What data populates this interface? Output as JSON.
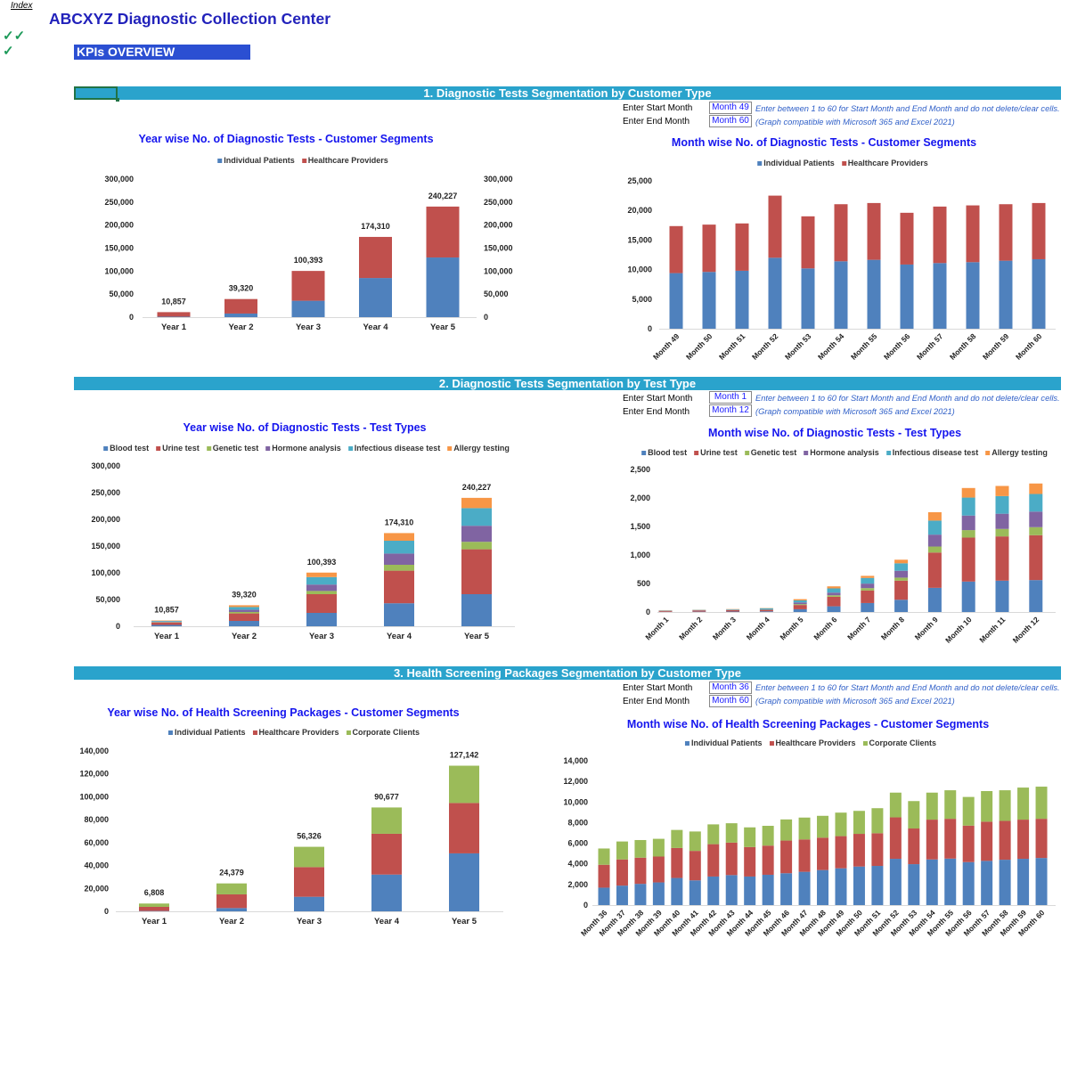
{
  "header": {
    "index_link": "Index",
    "title": "ABCXYZ Diagnostic Collection Center",
    "checkmarks": [
      "✓✓",
      "✓"
    ],
    "kpi_label": "KPIs OVERVIEW"
  },
  "colors": {
    "blue": "#4f81bd",
    "red": "#c0504d",
    "green": "#9bbb59",
    "purple": "#8064a2",
    "teal": "#4bacc6",
    "orange": "#f79646",
    "section": "#2aa3cc"
  },
  "sections": [
    {
      "title": "1. Diagnostic Tests Segmentation by Customer Type",
      "start_label": "Enter Start Month",
      "end_label": "Enter End Month",
      "start_value": "Month 49",
      "end_value": "Month 60",
      "note1": "Enter between 1 to 60 for Start Month and End Month and do not delete/clear cells.",
      "note2": "(Graph compatible with Microsoft 365 and Excel 2021)"
    },
    {
      "title": "2. Diagnostic Tests Segmentation by Test Type",
      "start_label": "Enter Start Month",
      "end_label": "Enter End Month",
      "start_value": "Month 1",
      "end_value": "Month 12",
      "note1": "Enter between 1 to 60 for Start Month and End Month and do not delete/clear cells.",
      "note2": "(Graph compatible with Microsoft 365 and Excel 2021)"
    },
    {
      "title": "3. Health Screening Packages Segmentation by Customer Type",
      "start_label": "Enter Start Month",
      "end_label": "Enter End Month",
      "start_value": "Month 36",
      "end_value": "Month 60",
      "note1": "Enter between 1 to 60 for Start Month and End Month and do not delete/clear cells.",
      "note2": "(Graph compatible with Microsoft 365 and Excel 2021)"
    }
  ],
  "chart_data": [
    {
      "type": "bar",
      "stacked": true,
      "title": "Year wise No. of Diagnostic Tests - Customer Segments",
      "legend": "top",
      "grid": false,
      "categories": [
        "Year 1",
        "Year 2",
        "Year 3",
        "Year 4",
        "Year 5"
      ],
      "totals": [
        "10,857",
        "39,320",
        "100,393",
        "174,310",
        "240,227"
      ],
      "ylim": [
        0,
        300000
      ],
      "yticks": [
        0,
        50000,
        100000,
        150000,
        200000,
        250000,
        300000
      ],
      "secondary_axis": true,
      "series": [
        {
          "name": "Individual Patients",
          "color": "#4f81bd",
          "values": [
            1000,
            7800,
            35600,
            85000,
            129600
          ]
        },
        {
          "name": "Healthcare Providers",
          "color": "#c0504d",
          "values": [
            9857,
            31520,
            64793,
            89310,
            110627
          ]
        }
      ]
    },
    {
      "type": "bar",
      "stacked": true,
      "title": "Month wise No. of Diagnostic Tests - Customer Segments",
      "legend": "top",
      "grid": false,
      "categories": [
        "Month 49",
        "Month 50",
        "Month 51",
        "Month 52",
        "Month 53",
        "Month 54",
        "Month 55",
        "Month 56",
        "Month 57",
        "Month 58",
        "Month 59",
        "Month 60"
      ],
      "ylim": [
        0,
        25000
      ],
      "yticks": [
        0,
        5000,
        10000,
        15000,
        20000,
        25000
      ],
      "series": [
        {
          "name": "Individual Patients",
          "color": "#4f81bd",
          "values": [
            9400,
            9600,
            9800,
            12000,
            10200,
            11400,
            11650,
            10850,
            11100,
            11250,
            11500,
            11750
          ]
        },
        {
          "name": "Healthcare Providers",
          "color": "#c0504d",
          "values": [
            7950,
            8000,
            8000,
            10500,
            8800,
            9650,
            9600,
            8750,
            9550,
            9600,
            9550,
            9500
          ]
        }
      ]
    },
    {
      "type": "bar",
      "stacked": true,
      "title": "Year wise No. of Diagnostic Tests - Test Types",
      "legend": "top",
      "grid": false,
      "categories": [
        "Year 1",
        "Year 2",
        "Year 3",
        "Year 4",
        "Year 5"
      ],
      "totals": [
        "10,857",
        "39,320",
        "100,393",
        "174,310",
        "240,227"
      ],
      "ylim": [
        0,
        300000
      ],
      "yticks": [
        0,
        50000,
        100000,
        150000,
        200000,
        250000,
        300000
      ],
      "series": [
        {
          "name": "Blood test",
          "color": "#4f81bd",
          "values": [
            2500,
            10000,
            25000,
            43000,
            60000
          ]
        },
        {
          "name": "Urine test",
          "color": "#c0504d",
          "values": [
            4500,
            14000,
            35000,
            61000,
            84000
          ]
        },
        {
          "name": "Genetic test",
          "color": "#9bbb59",
          "values": [
            800,
            2700,
            6000,
            11000,
            14000
          ]
        },
        {
          "name": "Hormone analysis",
          "color": "#8064a2",
          "values": [
            1000,
            4300,
            12000,
            21000,
            30000
          ]
        },
        {
          "name": "Infectious disease test",
          "color": "#4bacc6",
          "values": [
            1300,
            5000,
            14000,
            24000,
            33000
          ]
        },
        {
          "name": "Allergy testing",
          "color": "#f79646",
          "values": [
            757,
            3320,
            8393,
            14310,
            19227
          ]
        }
      ]
    },
    {
      "type": "bar",
      "stacked": true,
      "title": "Month wise No. of Diagnostic Tests - Test Types",
      "legend": "top",
      "grid": false,
      "categories": [
        "Month 1",
        "Month 2",
        "Month 3",
        "Month 4",
        "Month 5",
        "Month 6",
        "Month 7",
        "Month 8",
        "Month 9",
        "Month 10",
        "Month 11",
        "Month 12"
      ],
      "ylim": [
        0,
        2500
      ],
      "yticks": [
        0,
        500,
        1000,
        1500,
        2000,
        2500
      ],
      "series": [
        {
          "name": "Blood test",
          "color": "#4f81bd",
          "values": [
            4,
            6,
            8,
            12,
            48,
            100,
            157,
            215,
            424,
            534,
            550,
            560
          ]
        },
        {
          "name": "Urine test",
          "color": "#c0504d",
          "values": [
            14,
            18,
            24,
            22,
            75,
            167,
            220,
            335,
            619,
            771,
            776,
            787
          ]
        },
        {
          "name": "Genetic test",
          "color": "#9bbb59",
          "values": [
            3,
            3,
            4,
            5,
            15,
            26,
            42,
            53,
            105,
            131,
            131,
            141
          ]
        },
        {
          "name": "Hormone analysis",
          "color": "#8064a2",
          "values": [
            4,
            5,
            6,
            8,
            30,
            47,
            79,
            120,
            209,
            256,
            267,
            273
          ]
        },
        {
          "name": "Infectious disease test",
          "color": "#4bacc6",
          "values": [
            4,
            5,
            6,
            18,
            35,
            74,
            99,
            131,
            246,
            315,
            309,
            309
          ]
        },
        {
          "name": "Allergy testing",
          "color": "#f79646",
          "values": [
            3,
            3,
            4,
            5,
            22,
            36,
            37,
            63,
            147,
            168,
            178,
            184
          ]
        }
      ]
    },
    {
      "type": "bar",
      "stacked": true,
      "title": "Year wise No. of Health Screening Packages - Customer Segments",
      "legend": "top",
      "grid": false,
      "categories": [
        "Year 1",
        "Year 2",
        "Year 3",
        "Year 4",
        "Year 5"
      ],
      "totals": [
        "6,808",
        "24,379",
        "56,326",
        "90,677",
        "127,142"
      ],
      "ylim": [
        0,
        140000
      ],
      "yticks": [
        0,
        20000,
        40000,
        60000,
        80000,
        100000,
        120000,
        140000
      ],
      "series": [
        {
          "name": "Individual Patients",
          "color": "#4f81bd",
          "values": [
            300,
            2850,
            12700,
            32100,
            50600
          ]
        },
        {
          "name": "Healthcare Providers",
          "color": "#c0504d",
          "values": [
            3600,
            11950,
            25900,
            35600,
            44000
          ]
        },
        {
          "name": "Corporate Clients",
          "color": "#9bbb59",
          "values": [
            2908,
            9579,
            17726,
            22977,
            32542
          ]
        }
      ]
    },
    {
      "type": "bar",
      "stacked": true,
      "title": "Month wise No. of Health Screening Packages - Customer Segments",
      "legend": "top",
      "grid": false,
      "categories": [
        "Month 36",
        "Month 37",
        "Month 38",
        "Month 39",
        "Month 40",
        "Month 41",
        "Month 42",
        "Month 43",
        "Month 44",
        "Month 45",
        "Month 46",
        "Month 47",
        "Month 48",
        "Month 49",
        "Month 50",
        "Month 51",
        "Month 52",
        "Month 53",
        "Month 54",
        "Month 55",
        "Month 56",
        "Month 57",
        "Month 58",
        "Month 59",
        "Month 60"
      ],
      "ylim": [
        0,
        14000
      ],
      "yticks": [
        0,
        2000,
        4000,
        6000,
        8000,
        10000,
        12000,
        14000
      ],
      "series": [
        {
          "name": "Individual Patients",
          "color": "#4f81bd",
          "values": [
            1690,
            1890,
            2060,
            2200,
            2630,
            2400,
            2770,
            2910,
            2770,
            2940,
            3090,
            3230,
            3400,
            3570,
            3740,
            3800,
            4490,
            3970,
            4430,
            4510,
            4170,
            4290,
            4400,
            4490,
            4570
          ]
        },
        {
          "name": "Healthcare Providers",
          "color": "#c0504d",
          "values": [
            2220,
            2540,
            2540,
            2510,
            2910,
            2860,
            3140,
            3150,
            2860,
            2830,
            3170,
            3140,
            3140,
            3120,
            3170,
            3170,
            4020,
            3460,
            3860,
            3860,
            3540,
            3800,
            3770,
            3800,
            3800
          ]
        },
        {
          "name": "Corporate Clients",
          "color": "#9bbb59",
          "values": [
            1580,
            1740,
            1710,
            1720,
            1750,
            1880,
            1920,
            1880,
            1910,
            1920,
            2050,
            2120,
            2120,
            2280,
            2230,
            2430,
            2400,
            2660,
            2620,
            2770,
            2780,
            2970,
            2970,
            3110,
            3120
          ]
        }
      ]
    }
  ]
}
